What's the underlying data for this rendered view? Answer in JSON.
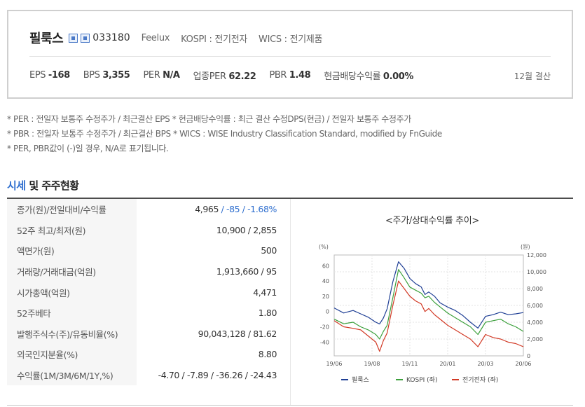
{
  "company": {
    "name": "필룩스",
    "code": "033180",
    "english_name": "Feelux",
    "market": "KOSPI : 전기전자",
    "wics": "WICS : 전기제품"
  },
  "metrics": [
    {
      "label": "EPS",
      "value": "-168"
    },
    {
      "label": "BPS",
      "value": "3,355"
    },
    {
      "label": "PER",
      "value": "N/A"
    },
    {
      "label": "업종PER",
      "value": "62.22"
    },
    {
      "label": "PBR",
      "value": "1.48"
    },
    {
      "label": "현금배당수익률",
      "value": "0.00%"
    }
  ],
  "settlement": "12월 결산",
  "notes": [
    "* PER : 전일자 보통주 수정주가 / 최근결산 EPS * 현금배당수익률 : 최근 결산 수정DPS(현금) / 전일자 보통주 수정주가",
    "* PBR : 전일자 보통주 수정주가 / 최근결산 BPS * WICS : WISE Industry Classification Standard, modified by FnGuide",
    "* PER, PBR값이 (-)일 경우, N/A로 표기됩니다."
  ],
  "section": {
    "accent": "시세",
    "rest": " 및 주주현황"
  },
  "stats": [
    {
      "label": "종가(원)/전일대비/수익률",
      "value": "4,965",
      "extra1": " / -85",
      "extra2": " / -1.68%"
    },
    {
      "label": "52주 최고/최저(원)",
      "value": "10,900 / 2,855"
    },
    {
      "label": "액면가(원)",
      "value": "500"
    },
    {
      "label": "거래량/거래대금(억원)",
      "value": "1,913,660 / 95"
    },
    {
      "label": "시가총액(억원)",
      "value": "4,471"
    },
    {
      "label": "52주베타",
      "value": "1.80"
    },
    {
      "label": "발행주식수(주)/유동비율(%)",
      "value": "90,043,128 / 81.62"
    },
    {
      "label": "외국인지분율(%)",
      "value": "8.80"
    },
    {
      "label": "수익률(1M/3M/6M/1Y,%)",
      "value": "",
      "returns": "-4.70 / -7.89 / -36.26 / -24.43"
    }
  ],
  "chart_data": {
    "type": "line",
    "title": "<주가/상대수익률 추이>",
    "y_left_unit": "(%)",
    "y_right_unit": "(원)",
    "y_left_ticks": [
      60,
      40,
      20,
      0,
      -20,
      -40
    ],
    "y_right_ticks": [
      "12,000",
      "10,000",
      "8,000",
      "6,000",
      "4,000",
      "2,000",
      "0"
    ],
    "x_ticks": [
      "19/06",
      "19/08",
      "19/11",
      "20/01",
      "20/03",
      "20/06"
    ],
    "y_left_range": [
      -58,
      74
    ],
    "y_right_range": [
      0,
      12000
    ],
    "grid": true,
    "legend_position": "bottom",
    "x": [
      0,
      5,
      10,
      14,
      18,
      22,
      24,
      26,
      28,
      31,
      34,
      37,
      40,
      43,
      46,
      48,
      50,
      53,
      56,
      60,
      64,
      68,
      72,
      76,
      80,
      84,
      88,
      92,
      96,
      100
    ],
    "series": [
      {
        "name": "필룩스",
        "color": "#1f3f95",
        "axis": "right",
        "values": [
          5700,
          5100,
          5400,
          5000,
          4600,
          4000,
          3800,
          4500,
          5600,
          8800,
          11200,
          10400,
          9200,
          8600,
          8200,
          7300,
          7600,
          7100,
          6300,
          5800,
          5400,
          4800,
          4000,
          3300,
          4700,
          4900,
          5200,
          4900,
          5000,
          5150
        ]
      },
      {
        "name": "KOSPI (좌)",
        "color": "#3ca03c",
        "axis": "left",
        "values": [
          -10,
          -16,
          -14,
          -20,
          -24,
          -30,
          -36,
          -26,
          -18,
          18,
          55,
          44,
          32,
          28,
          24,
          18,
          20,
          12,
          6,
          -2,
          -8,
          -14,
          -20,
          -30,
          -14,
          -12,
          -10,
          -16,
          -20,
          -26
        ]
      },
      {
        "name": "전기전자 (좌)",
        "color": "#d23a26",
        "axis": "left",
        "values": [
          -12,
          -20,
          -22,
          -24,
          -32,
          -40,
          -52,
          -38,
          -28,
          8,
          40,
          30,
          20,
          14,
          10,
          0,
          4,
          -4,
          -10,
          -18,
          -24,
          -30,
          -36,
          -46,
          -30,
          -34,
          -36,
          -40,
          -42,
          -46
        ]
      }
    ]
  }
}
